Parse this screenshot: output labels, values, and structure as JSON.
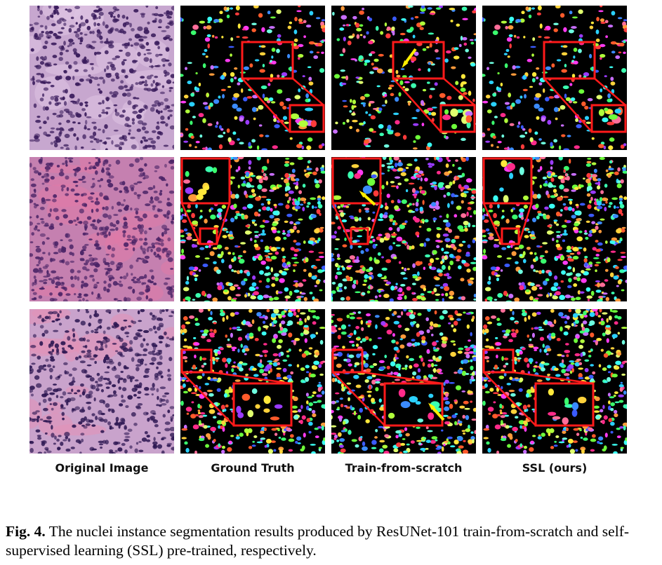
{
  "figure": {
    "columns": [
      "Original Image",
      "Ground Truth",
      "Train-from-scratch",
      "SSL (ours)"
    ],
    "caption_label": "Fig. 4.",
    "caption_text": "The nuclei instance segmentation results produced by ResUNet-101 train-from-scratch and self-supervised learning (SSL) pre-trained, respectively."
  },
  "colors": {
    "highlight_box": "#ff1a1a",
    "arrow": "#ffee00",
    "mask_background": "#000000"
  },
  "rows": [
    {
      "tissue": "#c7a7cf",
      "nuclei": "#3a1c5c",
      "stroma": "#dfc4e4"
    },
    {
      "tissue": "#c580b0",
      "nuclei": "#4a2366",
      "stroma": "#e07aa8"
    },
    {
      "tissue": "#c9a3cc",
      "nuclei": "#2d1752",
      "stroma": "#e391b6"
    }
  ]
}
